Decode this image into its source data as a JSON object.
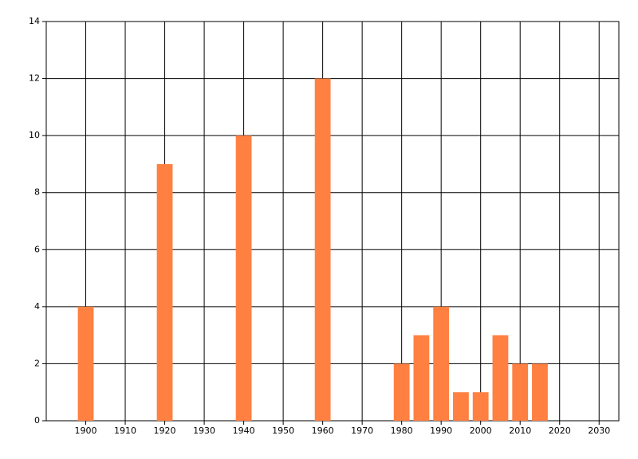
{
  "chart_data": {
    "type": "bar",
    "x": [
      1900,
      1920,
      1940,
      1960,
      1980,
      1985,
      1990,
      1995,
      2000,
      2005,
      2010,
      2015
    ],
    "values": [
      4,
      9,
      10,
      12,
      2,
      3,
      4,
      1,
      1,
      3,
      2,
      2
    ],
    "color": "#ff8040",
    "xlim": [
      1890,
      2035
    ],
    "xticks": [
      1900,
      1910,
      1920,
      1930,
      1940,
      1950,
      1960,
      1970,
      1980,
      1990,
      2000,
      2010,
      2020,
      2030
    ],
    "ylim": [
      0,
      14
    ],
    "yticks": [
      0,
      2,
      4,
      6,
      8,
      10,
      12,
      14
    ],
    "grid": true
  }
}
